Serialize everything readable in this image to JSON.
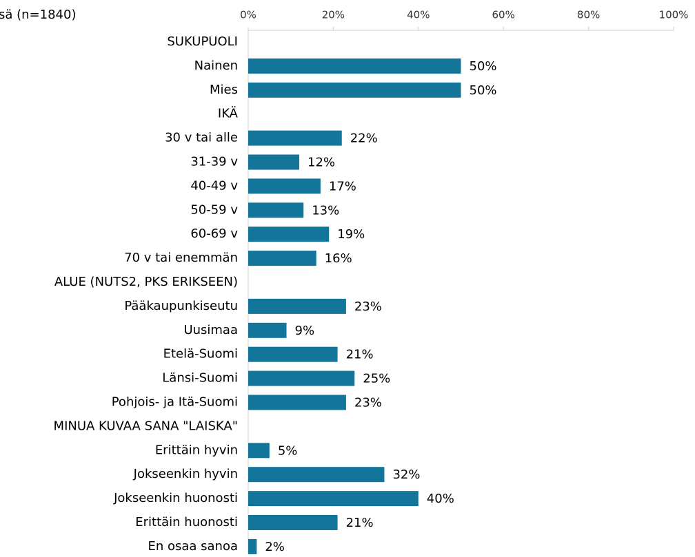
{
  "chart_data": {
    "type": "barh",
    "title": "sä (n=1840)",
    "categories": [
      "SUKUPUOLI",
      "Nainen",
      "Mies",
      "IKÄ",
      "30 v tai alle",
      "31-39 v",
      "40-49 v",
      "50-59 v",
      "60-69 v",
      "70 v tai enemmän",
      "ALUE (NUTS2, PKS ERIKSEEN)",
      "Pääkaupunkiseutu",
      "Uusimaa",
      "Etelä-Suomi",
      "Länsi-Suomi",
      "Pohjois- ja Itä-Suomi",
      "MINUA KUVAA SANA \"LAISKA\"",
      "Erittäin hyvin",
      "Jokseenkin hyvin",
      "Jokseenkin huonosti",
      "Erittäin huonosti",
      "En osaa sanoa"
    ],
    "values": [
      null,
      50,
      50,
      null,
      22,
      12,
      17,
      13,
      19,
      16,
      null,
      23,
      9,
      21,
      25,
      23,
      null,
      5,
      32,
      40,
      21,
      2
    ],
    "value_labels": [
      null,
      "50%",
      "50%",
      null,
      "22%",
      "12%",
      "17%",
      "13%",
      "19%",
      "16%",
      null,
      "23%",
      "9%",
      "21%",
      "25%",
      "23%",
      null,
      "5%",
      "32%",
      "40%",
      "21%",
      "2%"
    ],
    "color": "#14759a",
    "xlim": [
      0,
      100
    ],
    "xticks": [
      {
        "value": 0,
        "label": "0%"
      },
      {
        "value": 20,
        "label": "20%"
      },
      {
        "value": 40,
        "label": "40%"
      },
      {
        "value": 60,
        "label": "60%"
      },
      {
        "value": 80,
        "label": "80%"
      },
      {
        "value": 100,
        "label": "100%"
      }
    ]
  }
}
